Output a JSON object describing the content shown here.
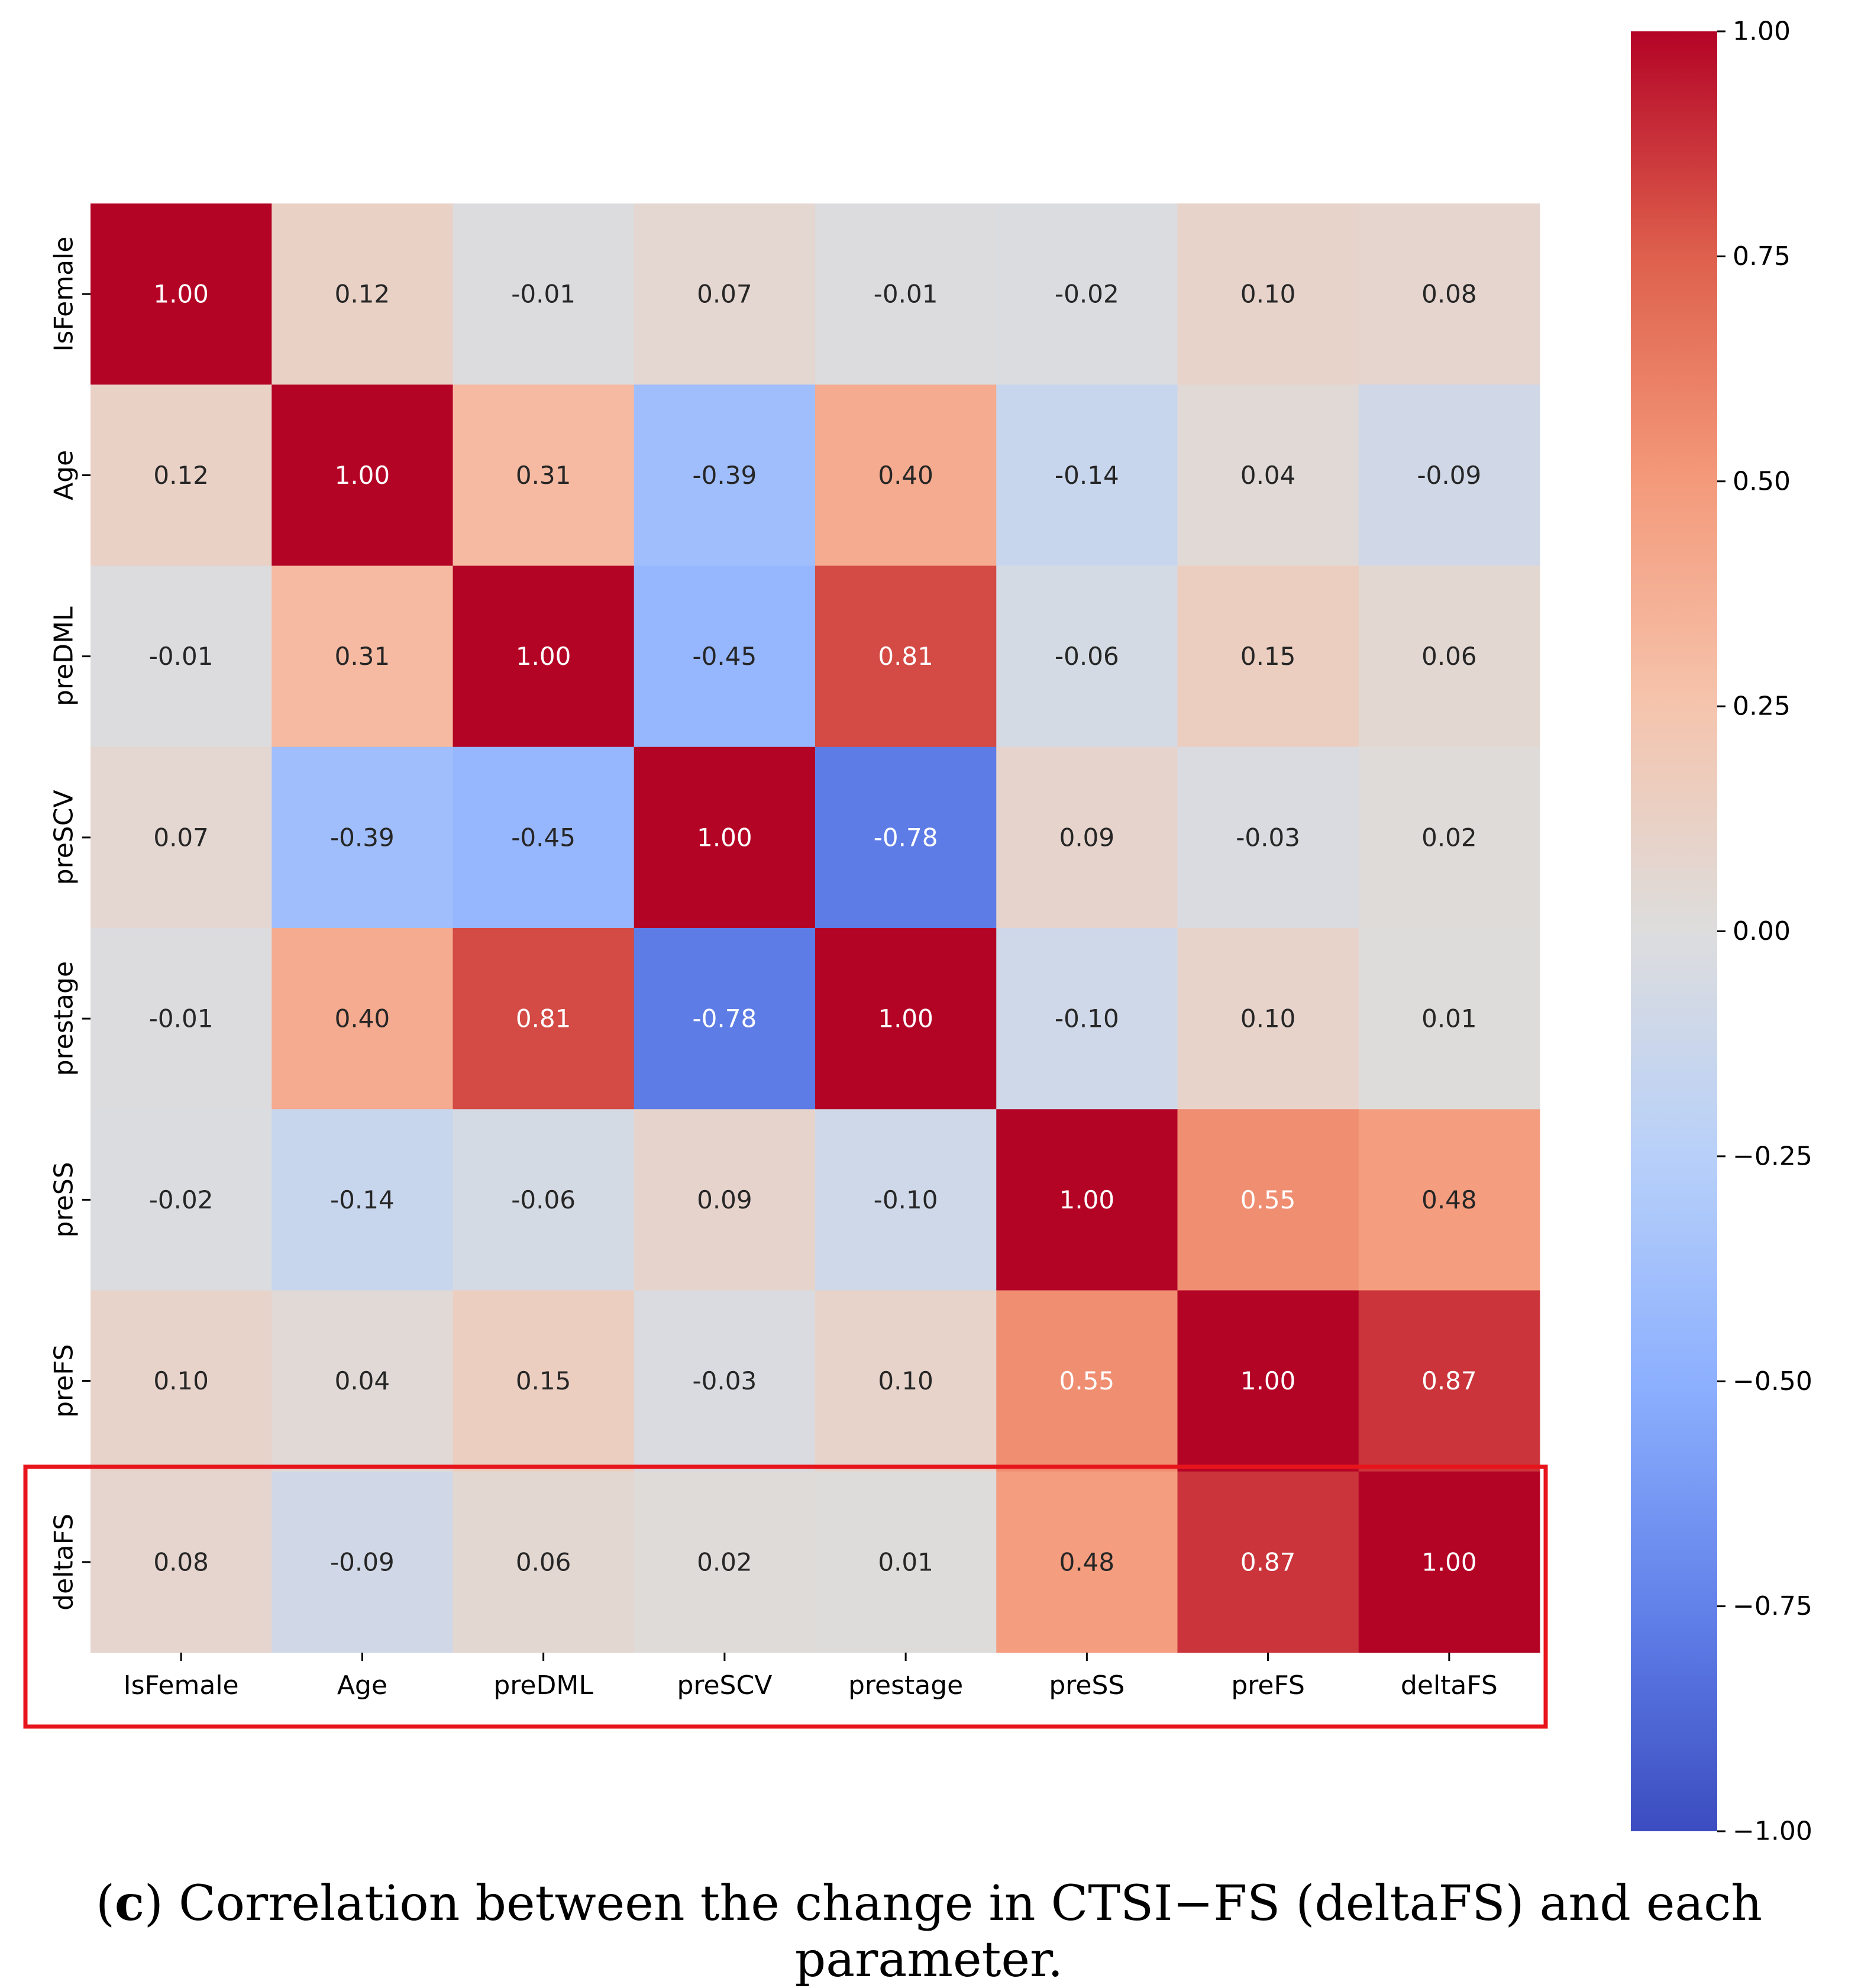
{
  "chart_data": {
    "type": "heatmap",
    "title": "",
    "variables": [
      "IsFemale",
      "Age",
      "preDML",
      "preSCV",
      "prestage",
      "preSS",
      "preFS",
      "deltaFS"
    ],
    "values": [
      [
        1.0,
        0.12,
        -0.01,
        0.07,
        -0.01,
        -0.02,
        0.1,
        0.08
      ],
      [
        0.12,
        1.0,
        0.31,
        -0.39,
        0.4,
        -0.14,
        0.04,
        -0.09
      ],
      [
        -0.01,
        0.31,
        1.0,
        -0.45,
        0.81,
        -0.06,
        0.15,
        0.06
      ],
      [
        0.07,
        -0.39,
        -0.45,
        1.0,
        -0.78,
        0.09,
        -0.03,
        0.02
      ],
      [
        -0.01,
        0.4,
        0.81,
        -0.78,
        1.0,
        -0.1,
        0.1,
        0.01
      ],
      [
        -0.02,
        -0.14,
        -0.06,
        0.09,
        -0.1,
        1.0,
        0.55,
        0.48
      ],
      [
        0.1,
        0.04,
        0.15,
        -0.03,
        0.1,
        0.55,
        1.0,
        0.87
      ],
      [
        0.08,
        -0.09,
        0.06,
        0.02,
        0.01,
        0.48,
        0.87,
        1.0
      ]
    ],
    "colormap": "coolwarm",
    "vmin": -1.0,
    "vmax": 1.0,
    "colorbar_ticks": [
      1.0,
      0.75,
      0.5,
      0.25,
      0.0,
      -0.25,
      -0.5,
      -0.75,
      -1.0
    ],
    "colorbar_tick_labels": [
      "1.00",
      "0.75",
      "0.50",
      "0.25",
      "0.00",
      "−0.25",
      "−0.50",
      "−0.75",
      "−1.00"
    ],
    "highlight": {
      "row": "deltaFS",
      "color": "#e8141b"
    }
  },
  "caption": {
    "label": "c",
    "text": " Correlation between the change in CTSI−FS (deltaFS) and each parameter."
  }
}
